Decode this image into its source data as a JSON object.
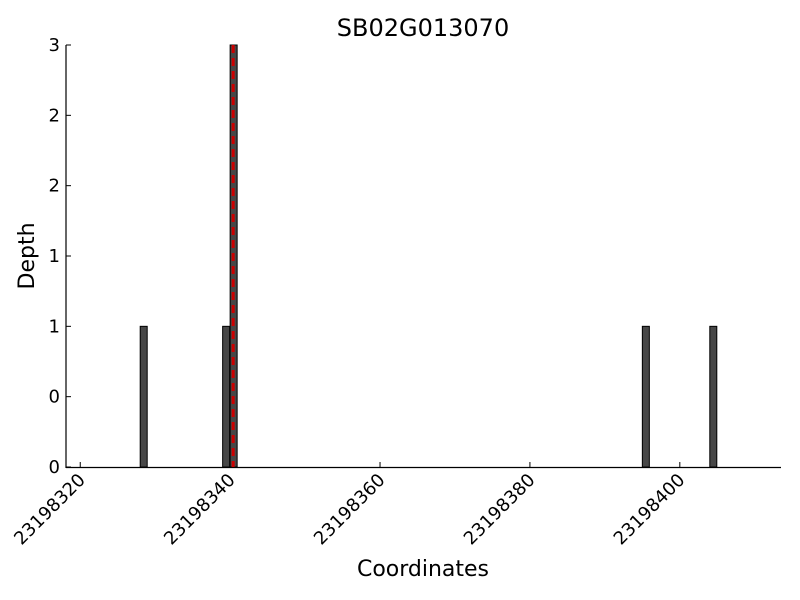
{
  "chart_data": {
    "type": "bar",
    "title": "SB02G013070",
    "x_label": "Coordinates",
    "y_label": "Depth",
    "x": [
      23198328,
      23198339,
      23198340,
      23198395,
      23198404
    ],
    "values": [
      1,
      1,
      3,
      1,
      1
    ],
    "color": "#474747",
    "xlim": [
      23198318.1,
      23198413.5
    ],
    "xticks": [
      23198320,
      23198340,
      23198360,
      23198380,
      23198400
    ],
    "ylim": [
      0,
      3
    ],
    "yticks": [
      0,
      {
        "value": 0.5,
        "label": "0"
      },
      1,
      {
        "value": 1.5,
        "label": "1"
      },
      2,
      {
        "value": 2.5,
        "label": "2"
      },
      3
    ],
    "marker_x": 23198340.4,
    "marker_color": "#cc0000",
    "grid": false
  }
}
